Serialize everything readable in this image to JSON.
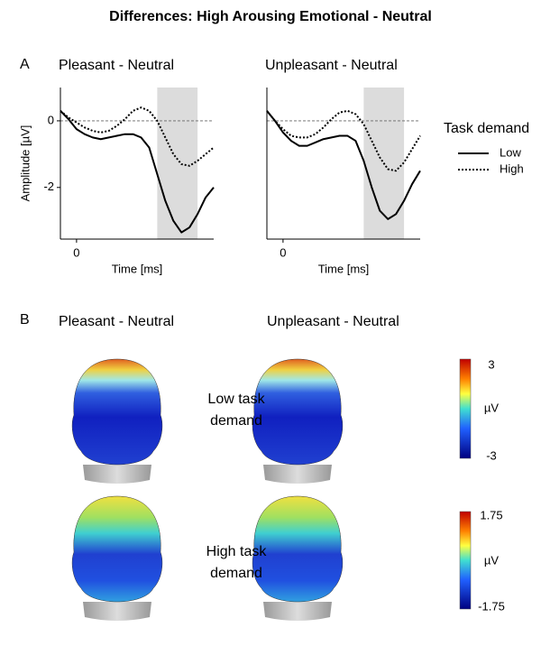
{
  "title": "Differences: High Arousing Emotional - Neutral",
  "panel_a_label": "A",
  "chart_data": [
    {
      "type": "line",
      "title": "Pleasant - Neutral",
      "xlabel": "Time [ms]",
      "ylabel": "Amplitude [µV]",
      "x": [
        -40,
        -20,
        0,
        20,
        40,
        60,
        80,
        100,
        120,
        140,
        160,
        180,
        200,
        220,
        240,
        260,
        280,
        300,
        320,
        340
      ],
      "xlim": [
        -40,
        340
      ],
      "xticks": [
        0
      ],
      "ylim": [
        -3.55,
        1
      ],
      "yticks": [
        0,
        -2
      ],
      "highlight": [
        200,
        300
      ],
      "hline": 0,
      "series": [
        {
          "name": "Low",
          "color": "#000000",
          "style": "solid",
          "values": [
            0.3,
            0.05,
            -0.25,
            -0.4,
            -0.5,
            -0.55,
            -0.5,
            -0.45,
            -0.4,
            -0.4,
            -0.5,
            -0.8,
            -1.6,
            -2.4,
            -3.0,
            -3.35,
            -3.2,
            -2.8,
            -2.3,
            -2.0
          ]
        },
        {
          "name": "High",
          "color": "#000000",
          "style": "dotted",
          "values": [
            0.3,
            0.1,
            -0.05,
            -0.2,
            -0.3,
            -0.35,
            -0.3,
            -0.15,
            0.05,
            0.3,
            0.4,
            0.3,
            0.0,
            -0.5,
            -1.0,
            -1.3,
            -1.35,
            -1.2,
            -1.0,
            -0.8
          ]
        }
      ]
    },
    {
      "type": "line",
      "title": "Unpleasant - Neutral",
      "xlabel": "Time [ms]",
      "legend_title": "Task demand",
      "x": [
        -40,
        -20,
        0,
        20,
        40,
        60,
        80,
        100,
        120,
        140,
        160,
        180,
        200,
        220,
        240,
        260,
        280,
        300,
        320,
        340
      ],
      "xlim": [
        -40,
        340
      ],
      "xticks": [
        0
      ],
      "ylim": [
        -3.55,
        1
      ],
      "highlight": [
        200,
        300
      ],
      "hline": 0,
      "legend": "right",
      "series": [
        {
          "name": "Low",
          "color": "#000000",
          "style": "solid",
          "values": [
            0.3,
            0.0,
            -0.35,
            -0.6,
            -0.75,
            -0.75,
            -0.65,
            -0.55,
            -0.5,
            -0.45,
            -0.45,
            -0.6,
            -1.2,
            -2.0,
            -2.7,
            -2.95,
            -2.8,
            -2.4,
            -1.9,
            -1.5
          ]
        },
        {
          "name": "High",
          "color": "#000000",
          "style": "dotted",
          "values": [
            0.3,
            0.0,
            -0.25,
            -0.45,
            -0.5,
            -0.5,
            -0.4,
            -0.2,
            0.05,
            0.25,
            0.3,
            0.2,
            -0.1,
            -0.6,
            -1.1,
            -1.45,
            -1.5,
            -1.25,
            -0.85,
            -0.45
          ]
        }
      ]
    }
  ],
  "panel_b": {
    "label": "B",
    "columns": [
      "Pleasant - Neutral",
      "Unpleasant - Neutral"
    ],
    "rows": [
      {
        "label": [
          "Low task",
          "demand"
        ],
        "colorbar": {
          "max": "3",
          "unit": "µV",
          "min": "-3"
        }
      },
      {
        "label": [
          "High task",
          "demand"
        ],
        "colorbar": {
          "max": "1.75",
          "unit": "µV",
          "min": "-1.75"
        }
      }
    ]
  }
}
